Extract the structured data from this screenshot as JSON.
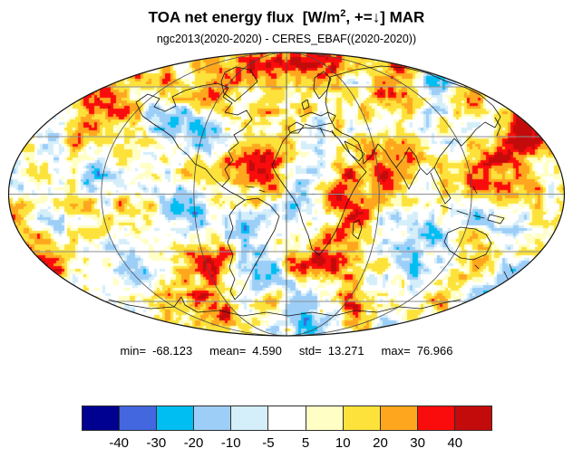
{
  "title": {
    "text_before_sup": "TOA net energy flux  [W/m",
    "superscript": "2",
    "text_after_sup": ", +=",
    "arrow": "↓",
    "text_end": "] MAR"
  },
  "subtitle": "ngc2013(2020-2020) - CERES_EBAF((2020-2020))",
  "stats": [
    {
      "label": "min=",
      "value": "-68.123"
    },
    {
      "label": "mean=",
      "value": "4.590"
    },
    {
      "label": "std=",
      "value": "13.271"
    },
    {
      "label": "max=",
      "value": "76.966"
    }
  ],
  "chart_data": {
    "type": "heatmap",
    "projection": "mollweide-world-map",
    "title": "TOA net energy flux [W/m2, +=↓] MAR",
    "subtitle": "ngc2013(2020-2020) - CERES_EBAF((2020-2020))",
    "units": "W/m2",
    "month": "MAR",
    "stats": {
      "min": -68.123,
      "mean": 4.59,
      "std": 13.271,
      "max": 76.966
    },
    "colorbar": {
      "orientation": "horizontal",
      "levels": [
        -40,
        -30,
        -20,
        -10,
        -5,
        5,
        10,
        20,
        30,
        40
      ],
      "colors": [
        "#000091",
        "#4367DF",
        "#00BEF2",
        "#9CCEF8",
        "#D4EEFA",
        "#FFFFFF",
        "#FFFFC5",
        "#FCE23B",
        "#FEA71E",
        "#FB0C0C",
        "#C30B0B"
      ]
    },
    "graticule": {
      "parallels_deg": [
        -60,
        -30,
        0,
        30,
        60
      ],
      "meridian_step_deg": 60
    }
  }
}
